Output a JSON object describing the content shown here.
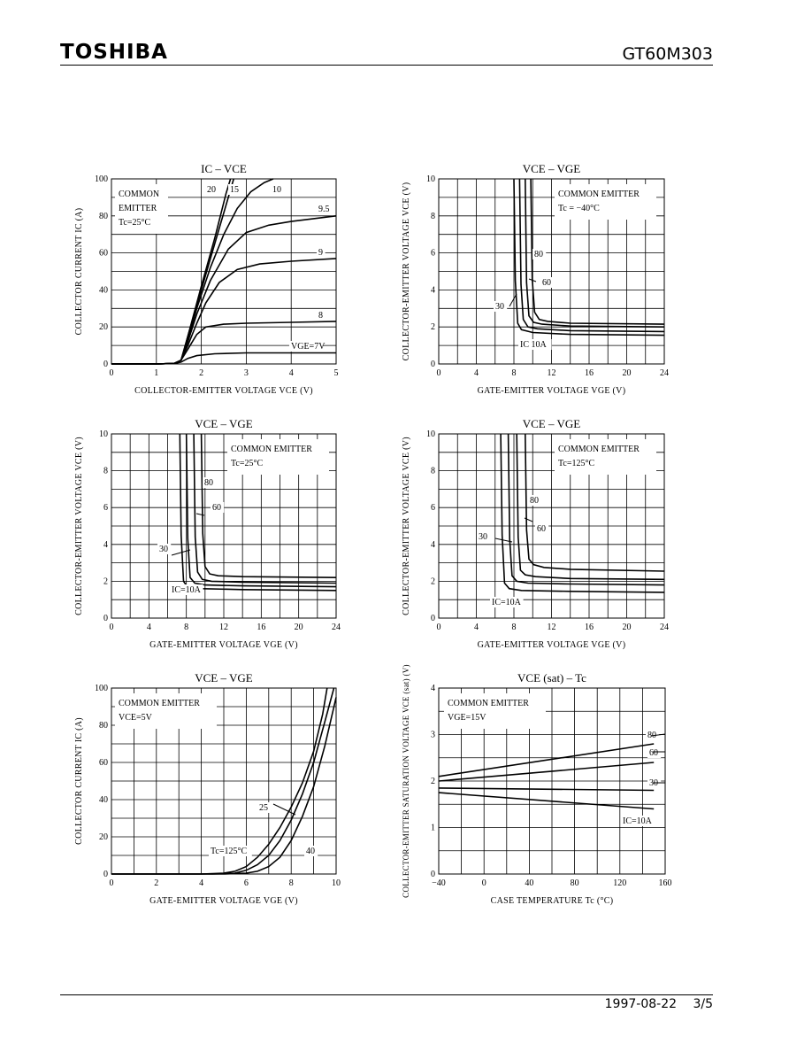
{
  "header": {
    "brand": "TOSHIBA",
    "part_number": "GT60M303"
  },
  "footer": {
    "date": "1997-08-22",
    "page": "3/5"
  },
  "chart_data": [
    {
      "type": "line",
      "title": "IC – VCE",
      "xlabel": "COLLECTOR-EMITTER VOLTAGE VCE (V)",
      "ylabel": "COLLECTOR CURRENT IC (A)",
      "xlim": [
        0,
        5
      ],
      "ylim": [
        0,
        100
      ],
      "xticks": [
        0,
        1,
        2,
        3,
        4,
        5
      ],
      "yticks": [
        0,
        20,
        40,
        60,
        80,
        100
      ],
      "xgrid": [
        1,
        2,
        3,
        4
      ],
      "ygrid": [
        10,
        20,
        30,
        40,
        50,
        60,
        70,
        80,
        90
      ],
      "annotation": [
        "COMMON",
        "EMITTER",
        "Tc=25°C"
      ],
      "series": [
        {
          "name": "VGE=7V",
          "x": [
            0,
            1,
            1.4,
            1.55,
            1.7,
            1.9,
            2.3,
            3,
            4,
            5
          ],
          "y": [
            0,
            0,
            0.3,
            1,
            3,
            4.5,
            5.5,
            6,
            6,
            6
          ]
        },
        {
          "name": "8",
          "x": [
            0,
            1,
            1.4,
            1.55,
            1.7,
            1.9,
            2.1,
            2.5,
            3,
            4,
            5
          ],
          "y": [
            0,
            0,
            0.3,
            2,
            8,
            16,
            20,
            21.5,
            22,
            22.5,
            23
          ]
        },
        {
          "name": "9",
          "x": [
            0,
            1,
            1.4,
            1.55,
            1.7,
            1.9,
            2.1,
            2.4,
            2.8,
            3.3,
            4,
            5
          ],
          "y": [
            0,
            0,
            0.3,
            2,
            10,
            22,
            33,
            44,
            51,
            54,
            55.5,
            57
          ]
        },
        {
          "name": "9.5",
          "x": [
            0,
            1,
            1.4,
            1.55,
            1.7,
            1.9,
            2.2,
            2.6,
            3,
            3.5,
            4,
            5
          ],
          "y": [
            0,
            0,
            0.3,
            2,
            12,
            27,
            45,
            62,
            71,
            75,
            77,
            80
          ]
        },
        {
          "name": "10",
          "x": [
            0,
            1,
            1.4,
            1.55,
            1.7,
            1.9,
            2.2,
            2.5,
            2.8,
            3.1,
            3.4,
            3.6
          ],
          "y": [
            0,
            0,
            0.3,
            2,
            13,
            30,
            52,
            70,
            84,
            93,
            98,
            100
          ]
        },
        {
          "name": "15",
          "x": [
            0,
            1,
            1.4,
            1.55,
            1.7,
            2.0,
            2.3,
            2.6,
            2.72
          ],
          "y": [
            0,
            0,
            0.3,
            2,
            15,
            40,
            65,
            90,
            100
          ]
        },
        {
          "name": "20",
          "x": [
            0,
            1,
            1.4,
            1.55,
            1.7,
            2.0,
            2.3,
            2.55,
            2.65
          ],
          "y": [
            0,
            0,
            0.3,
            2,
            15,
            42,
            68,
            92,
            100
          ]
        }
      ],
      "curve_labels": [
        "20",
        "15",
        "10",
        "9.5",
        "9",
        "8",
        "VGE=7V"
      ]
    },
    {
      "type": "line",
      "title": "VCE – VGE",
      "xlabel": "GATE-EMITTER VOLTAGE VGE (V)",
      "ylabel": "COLLECTOR-EMITTER VOLTAGE VCE (V)",
      "xlim": [
        0,
        24
      ],
      "ylim": [
        0,
        10
      ],
      "xticks": [
        0,
        4,
        8,
        12,
        16,
        20,
        24
      ],
      "yticks": [
        0,
        2,
        4,
        6,
        8,
        10
      ],
      "xgrid": [
        2,
        4,
        6,
        8,
        10,
        12,
        14,
        16,
        18,
        20,
        22
      ],
      "ygrid": [
        1,
        2,
        3,
        4,
        5,
        6,
        7,
        8,
        9
      ],
      "annotation": [
        "COMMON EMITTER",
        "Tc = −40°C"
      ],
      "series": [
        {
          "name": "IC=10A",
          "x": [
            8.0,
            8.15,
            8.4,
            8.8,
            10,
            14,
            24
          ],
          "y": [
            10,
            4.5,
            2.2,
            1.85,
            1.7,
            1.6,
            1.55
          ]
        },
        {
          "name": "30",
          "x": [
            8.6,
            8.75,
            9.0,
            9.5,
            10.5,
            14,
            24
          ],
          "y": [
            10,
            4.3,
            2.4,
            2.0,
            1.9,
            1.8,
            1.75
          ]
        },
        {
          "name": "60",
          "x": [
            9.2,
            9.35,
            9.6,
            10.1,
            11,
            14,
            24
          ],
          "y": [
            10,
            4.4,
            2.6,
            2.25,
            2.15,
            2.05,
            2.0
          ]
        },
        {
          "name": "80",
          "x": [
            9.8,
            9.95,
            10.2,
            10.7,
            11.6,
            14,
            24
          ],
          "y": [
            10,
            4.6,
            2.8,
            2.4,
            2.3,
            2.2,
            2.15
          ]
        }
      ],
      "curve_labels": [
        "80",
        "60",
        "30",
        "IC 10A"
      ]
    },
    {
      "type": "line",
      "title": "VCE – VGE",
      "xlabel": "GATE-EMITTER VOLTAGE VGE (V)",
      "ylabel": "COLLECTOR-EMITTER VOLTAGE VCE (V)",
      "xlim": [
        0,
        24
      ],
      "ylim": [
        0,
        10
      ],
      "xticks": [
        0,
        4,
        8,
        12,
        16,
        20,
        24
      ],
      "yticks": [
        0,
        2,
        4,
        6,
        8,
        10
      ],
      "xgrid": [
        2,
        4,
        6,
        8,
        10,
        12,
        14,
        16,
        18,
        20,
        22
      ],
      "ygrid": [
        1,
        2,
        3,
        4,
        5,
        6,
        7,
        8,
        9
      ],
      "annotation": [
        "COMMON EMITTER",
        "Tc=25°C"
      ],
      "series": [
        {
          "name": "IC=10A",
          "x": [
            7.3,
            7.45,
            7.7,
            8.1,
            9.3,
            14,
            24
          ],
          "y": [
            10,
            4.5,
            2.0,
            1.7,
            1.6,
            1.55,
            1.5
          ]
        },
        {
          "name": "30",
          "x": [
            8.0,
            8.15,
            8.4,
            8.9,
            10,
            14,
            24
          ],
          "y": [
            10,
            4.3,
            2.2,
            1.9,
            1.8,
            1.75,
            1.7
          ]
        },
        {
          "name": "60",
          "x": [
            8.8,
            8.95,
            9.2,
            9.7,
            10.7,
            14,
            24
          ],
          "y": [
            10,
            4.4,
            2.5,
            2.1,
            2.0,
            1.95,
            1.9
          ]
        },
        {
          "name": "80",
          "x": [
            9.6,
            9.75,
            10.0,
            10.5,
            11.4,
            14,
            24
          ],
          "y": [
            10,
            4.6,
            2.8,
            2.4,
            2.3,
            2.25,
            2.2
          ]
        }
      ],
      "curve_labels": [
        "80",
        "60",
        "30",
        "IC=10A"
      ]
    },
    {
      "type": "line",
      "title": "VCE – VGE",
      "xlabel": "GATE-EMITTER VOLTAGE VGE (V)",
      "ylabel": "COLLECTOR-EMITTER VOLTAGE VCE (V)",
      "xlim": [
        0,
        24
      ],
      "ylim": [
        0,
        10
      ],
      "xticks": [
        0,
        4,
        8,
        12,
        16,
        20,
        24
      ],
      "yticks": [
        0,
        2,
        4,
        6,
        8,
        10
      ],
      "xgrid": [
        2,
        4,
        6,
        8,
        10,
        12,
        14,
        16,
        18,
        20,
        22
      ],
      "ygrid": [
        1,
        2,
        3,
        4,
        5,
        6,
        7,
        8,
        9
      ],
      "annotation": [
        "COMMON EMITTER",
        "Tc=125°C"
      ],
      "series": [
        {
          "name": "IC=10A",
          "x": [
            6.6,
            6.75,
            7.0,
            7.5,
            8.8,
            14,
            24
          ],
          "y": [
            10,
            4.5,
            1.9,
            1.6,
            1.5,
            1.45,
            1.4
          ]
        },
        {
          "name": "30",
          "x": [
            7.4,
            7.55,
            7.8,
            8.3,
            9.5,
            14,
            24
          ],
          "y": [
            10,
            4.3,
            2.3,
            2.0,
            1.9,
            1.85,
            1.8
          ]
        },
        {
          "name": "60",
          "x": [
            8.3,
            8.45,
            8.7,
            9.2,
            10.3,
            14,
            24
          ],
          "y": [
            10,
            4.4,
            2.6,
            2.35,
            2.25,
            2.15,
            2.1
          ]
        },
        {
          "name": "80",
          "x": [
            9.2,
            9.35,
            9.6,
            10.1,
            11.2,
            14,
            24
          ],
          "y": [
            10,
            4.8,
            3.2,
            2.9,
            2.75,
            2.65,
            2.55
          ]
        }
      ],
      "curve_labels": [
        "80",
        "60",
        "30",
        "IC=10A"
      ]
    },
    {
      "type": "line",
      "title": "VCE – VGE",
      "xlabel": "GATE-EMITTER VOLTAGE VGE (V)",
      "ylabel": "COLLECTOR CURRENT IC (A)",
      "xlim": [
        0,
        10
      ],
      "ylim": [
        0,
        100
      ],
      "xticks": [
        0,
        2,
        4,
        6,
        8,
        10
      ],
      "yticks": [
        0,
        20,
        40,
        60,
        80,
        100
      ],
      "xgrid": [
        1,
        2,
        3,
        4,
        5,
        6,
        7,
        8,
        9
      ],
      "ygrid": [
        10,
        20,
        30,
        40,
        50,
        60,
        70,
        80,
        90
      ],
      "annotation": [
        "COMMON EMITTER",
        "VCE=5V"
      ],
      "series": [
        {
          "name": "Tc=125°C",
          "x": [
            0,
            4,
            5,
            5.5,
            6,
            6.5,
            7,
            7.5,
            8,
            8.5,
            9,
            9.4,
            9.6
          ],
          "y": [
            0,
            0,
            0.5,
            1.5,
            4,
            9,
            16,
            25,
            36,
            49,
            66,
            86,
            100
          ]
        },
        {
          "name": "25",
          "x": [
            0,
            4.5,
            5.5,
            6,
            6.5,
            7,
            7.5,
            8,
            8.5,
            9,
            9.5,
            9.9
          ],
          "y": [
            0,
            0,
            0.5,
            2,
            5,
            10,
            18,
            29,
            43,
            60,
            82,
            100
          ]
        },
        {
          "name": "40",
          "x": [
            0,
            5,
            6,
            6.5,
            7,
            7.5,
            8,
            8.5,
            9,
            9.5,
            10
          ],
          "y": [
            0,
            0,
            0.5,
            1.5,
            4,
            9,
            18,
            31,
            47,
            69,
            95
          ]
        }
      ],
      "curve_labels": [
        "25",
        "Tc=125°C",
        "40"
      ]
    },
    {
      "type": "line",
      "title": "VCE (sat) – Tc",
      "xlabel": "CASE TEMPERATURE Tc (°C)",
      "ylabel": "COLLECTOR-EMITTER SATURATION VOLTAGE VCE (sat) (V)",
      "xlim": [
        -40,
        160
      ],
      "ylim": [
        0,
        4
      ],
      "xticks": [
        -40,
        0,
        40,
        80,
        120,
        160
      ],
      "yticks": [
        0,
        1,
        2,
        3,
        4
      ],
      "xgrid": [
        -20,
        0,
        20,
        40,
        60,
        80,
        100,
        120,
        140
      ],
      "ygrid": [
        0.5,
        1,
        1.5,
        2,
        2.5,
        3,
        3.5
      ],
      "annotation": [
        "COMMON EMITTER",
        "VGE=15V"
      ],
      "series": [
        {
          "name": "80",
          "x": [
            -40,
            150
          ],
          "y": [
            2.1,
            2.8
          ]
        },
        {
          "name": "60",
          "x": [
            -40,
            150
          ],
          "y": [
            2.0,
            2.4
          ]
        },
        {
          "name": "30",
          "x": [
            -40,
            150
          ],
          "y": [
            1.85,
            1.8
          ]
        },
        {
          "name": "IC=10A",
          "x": [
            -40,
            150
          ],
          "y": [
            1.75,
            1.4
          ]
        }
      ],
      "curve_labels": [
        "80",
        "60",
        "30",
        "IC=10A"
      ]
    }
  ]
}
